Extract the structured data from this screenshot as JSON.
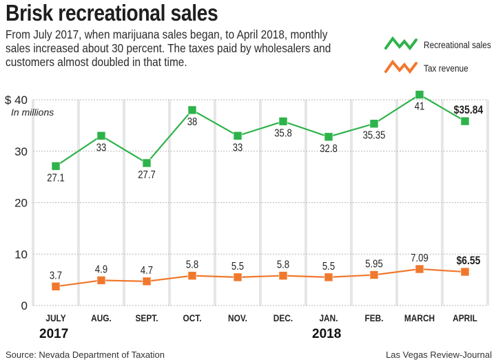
{
  "header": {
    "title": "Brisk recreational sales",
    "subtitle": "From July 2017, when marijuana sales began, to April 2018, monthly sales increased about 30 percent. The taxes paid by wholesalers and customers almost doubled in that time."
  },
  "footer": {
    "source": "Source: Nevada Department of Taxation",
    "credit": "Las Vegas Review-Journal"
  },
  "chart_data": {
    "type": "line",
    "title": "Brisk recreational sales",
    "ylabel": "In millions",
    "yunit_prefix": "$",
    "ylim": [
      0,
      40
    ],
    "yticks": [
      0,
      10,
      20,
      30,
      40
    ],
    "ytick_labels": [
      "0",
      "10",
      "20",
      "30",
      "$ 40"
    ],
    "grid": true,
    "legend_position": "top-right",
    "categories": [
      "JULY",
      "AUG.",
      "SEPT.",
      "OCT.",
      "NOV.",
      "DEC.",
      "JAN.",
      "FEB.",
      "MARCH",
      "APRIL"
    ],
    "year_labels": [
      {
        "label": "2017",
        "category_index": 0
      },
      {
        "label": "2018",
        "category_index": 6
      }
    ],
    "series": [
      {
        "name": "Recreational sales",
        "color": "#2db34a",
        "values": [
          27.1,
          33,
          27.7,
          38,
          33,
          35.8,
          32.8,
          35.35,
          41,
          35.84
        ],
        "labels": [
          "27.1",
          "33",
          "27.7",
          "38",
          "33",
          "35.8",
          "32.8",
          "35.35",
          "41",
          "$35.84"
        ],
        "label_position": [
          "below",
          "below",
          "below",
          "below",
          "below",
          "below",
          "below",
          "below",
          "below",
          "above"
        ]
      },
      {
        "name": "Tax revenue",
        "color": "#f0782d",
        "values": [
          3.7,
          4.9,
          4.7,
          5.8,
          5.5,
          5.8,
          5.5,
          5.95,
          7.09,
          6.55
        ],
        "labels": [
          "3.7",
          "4.9",
          "4.7",
          "5.8",
          "5.5",
          "5.8",
          "5.5",
          "5.95",
          "7.09",
          "$6.55"
        ],
        "label_position": [
          "above",
          "above",
          "above",
          "above",
          "above",
          "above",
          "above",
          "above",
          "above",
          "above"
        ]
      }
    ]
  }
}
